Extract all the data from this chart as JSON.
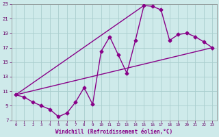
{
  "xlabel": "Windchill (Refroidissement éolien,°C)",
  "bg_color": "#ceeaea",
  "grid_color": "#aacece",
  "line_color": "#880088",
  "marker": "D",
  "markersize": 2.5,
  "linewidth": 1.0,
  "xlim": [
    -0.5,
    23.5
  ],
  "ylim": [
    7,
    23
  ],
  "xticks": [
    0,
    1,
    2,
    3,
    4,
    5,
    6,
    7,
    8,
    9,
    10,
    11,
    12,
    13,
    14,
    15,
    16,
    17,
    18,
    19,
    20,
    21,
    22,
    23
  ],
  "yticks": [
    7,
    9,
    11,
    13,
    15,
    17,
    19,
    21,
    23
  ],
  "curve1_x": [
    0,
    1,
    2,
    3,
    4,
    5,
    6,
    7,
    8,
    9,
    10,
    11,
    12,
    13,
    14,
    15,
    16,
    17,
    18,
    19,
    20,
    21,
    22,
    23
  ],
  "curve1_y": [
    10.5,
    10.2,
    9.5,
    9.0,
    8.5,
    7.5,
    8.0,
    9.5,
    11.5,
    9.2,
    16.5,
    18.5,
    16.0,
    13.5,
    18.0,
    22.8,
    22.7,
    22.2,
    18.0,
    18.8,
    19.0,
    18.5,
    17.8,
    17.0
  ],
  "line2_x": [
    0,
    23
  ],
  "line2_y": [
    10.5,
    17.0
  ],
  "line3_x": [
    0,
    15
  ],
  "line3_y": [
    10.5,
    22.8
  ]
}
